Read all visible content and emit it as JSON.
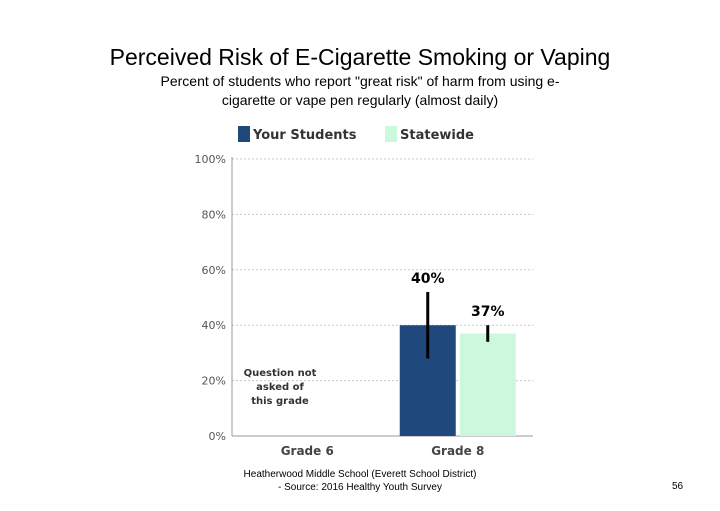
{
  "slide": {
    "title": "Perceived Risk of E-Cigarette Smoking or Vaping",
    "subtitle": "Percent of students who report \"great risk\" of harm from using e-cigarette or vape pen regularly (almost daily)",
    "footer_line1": "Heatherwood Middle School (Everett School District)",
    "footer_line2": "- Source: 2016 Healthy Youth Survey",
    "page_number": "56"
  },
  "chart_data": {
    "type": "bar",
    "categories": [
      "Grade 6",
      "Grade 8"
    ],
    "series": [
      {
        "name": "Your Students",
        "color": "#1f497d",
        "values": [
          null,
          40
        ],
        "labels": [
          "",
          "40%"
        ],
        "error": [
          null,
          [
            28,
            52
          ]
        ]
      },
      {
        "name": "Statewide",
        "color": "#ccf8dd",
        "values": [
          null,
          37
        ],
        "labels": [
          "",
          "37%"
        ],
        "error": [
          null,
          [
            34,
            40
          ]
        ]
      }
    ],
    "ylim": [
      0,
      100
    ],
    "yticks": [
      0,
      20,
      40,
      60,
      80,
      100
    ],
    "ytick_labels": [
      "0%",
      "20%",
      "40%",
      "60%",
      "80%",
      "100%"
    ],
    "grid": true,
    "legend_position": "top",
    "annotation": [
      "Question not",
      "asked of",
      "this grade"
    ]
  }
}
